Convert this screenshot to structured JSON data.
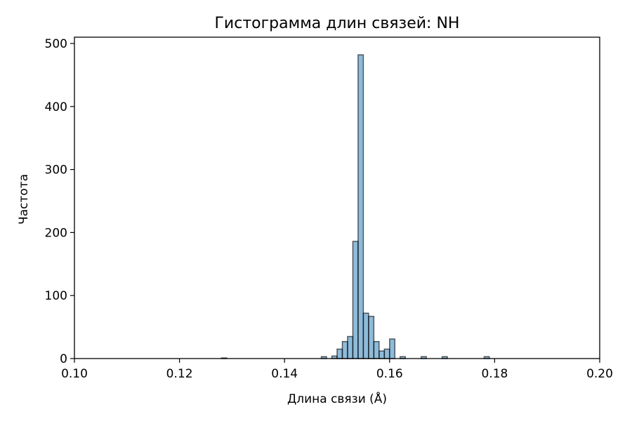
{
  "chart_data": {
    "type": "bar",
    "title": "Гистограмма длин связей: NH",
    "xlabel": "Длина связи (Å)",
    "ylabel": "Частота",
    "xlim": [
      0.1,
      0.2
    ],
    "ylim": [
      0,
      510
    ],
    "xticks": [
      "0.10",
      "0.12",
      "0.14",
      "0.16",
      "0.18",
      "0.20"
    ],
    "yticks": [
      "0",
      "100",
      "200",
      "300",
      "400",
      "500"
    ],
    "grid": false,
    "bar_color": "#1f77b4",
    "bar_alpha": 0.5,
    "edge_color": "#000000",
    "bin_width": 0.001,
    "bins": [
      {
        "x": 0.128,
        "count": 1
      },
      {
        "x": 0.147,
        "count": 3
      },
      {
        "x": 0.149,
        "count": 4
      },
      {
        "x": 0.15,
        "count": 15
      },
      {
        "x": 0.151,
        "count": 27
      },
      {
        "x": 0.152,
        "count": 35
      },
      {
        "x": 0.153,
        "count": 186
      },
      {
        "x": 0.154,
        "count": 482
      },
      {
        "x": 0.155,
        "count": 72
      },
      {
        "x": 0.156,
        "count": 67
      },
      {
        "x": 0.157,
        "count": 27
      },
      {
        "x": 0.158,
        "count": 12
      },
      {
        "x": 0.159,
        "count": 15
      },
      {
        "x": 0.16,
        "count": 31
      },
      {
        "x": 0.162,
        "count": 3
      },
      {
        "x": 0.166,
        "count": 3
      },
      {
        "x": 0.17,
        "count": 3
      },
      {
        "x": 0.178,
        "count": 3
      }
    ]
  }
}
